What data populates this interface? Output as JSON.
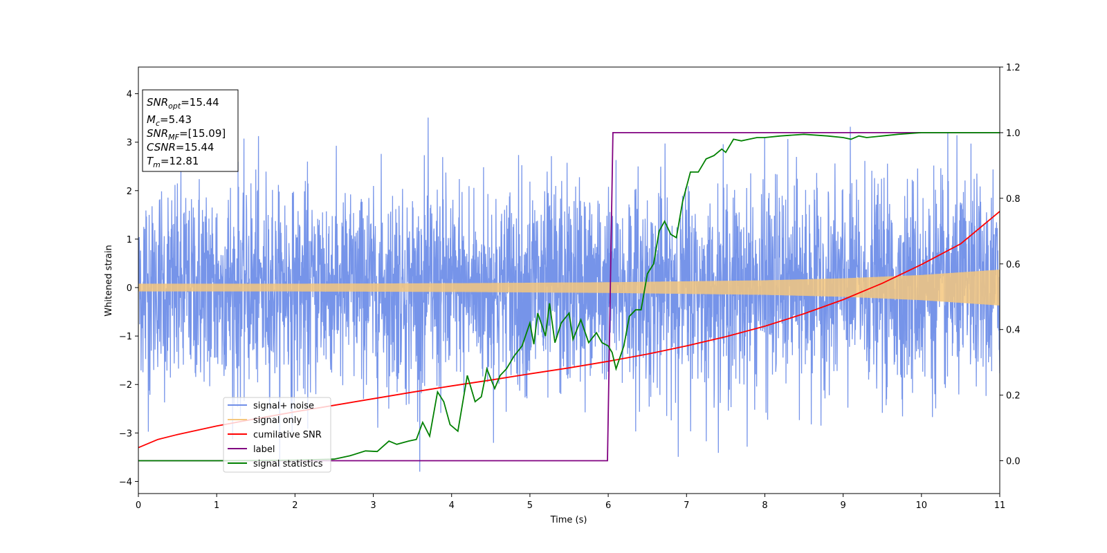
{
  "chart_data": {
    "type": "line",
    "xlabel": "Time (s)",
    "ylabel": "Whitened strain",
    "xlim": [
      0,
      11
    ],
    "ylim": [
      -4.25,
      4.55
    ],
    "y2lim": [
      -0.1,
      1.2
    ],
    "x_ticks": [
      "0",
      "1",
      "2",
      "3",
      "4",
      "5",
      "6",
      "7",
      "8",
      "9",
      "10",
      "11"
    ],
    "y_ticks": [
      "−4",
      "−3",
      "−2",
      "−1",
      "0",
      "1",
      "2",
      "3",
      "4"
    ],
    "y2_ticks": [
      "0.0",
      "0.2",
      "0.4",
      "0.6",
      "0.8",
      "1.0",
      "1.2"
    ],
    "grid": false,
    "legend_position": "lower-left",
    "legend": [
      {
        "label": "signal+ noise",
        "color": "#6f8ee8"
      },
      {
        "label": "signal only",
        "color": "#f5c77e"
      },
      {
        "label": "cumilative SNR",
        "color": "#ff0000"
      },
      {
        "label": "label",
        "color": "#800080"
      },
      {
        "label": "signal statistics",
        "color": "#008000"
      }
    ],
    "stats_box": [
      {
        "name": "SNR",
        "sub": "opt",
        "value": "=15.44"
      },
      {
        "name": "M",
        "sub": "c",
        "value": "=5.43"
      },
      {
        "name": "SNR",
        "sub": "MF",
        "value": "=[15.09]"
      },
      {
        "name": "CSNR",
        "sub": "",
        "value": "=15.44"
      },
      {
        "name": "T",
        "sub": "m",
        "value": "=12.81"
      }
    ],
    "series": [
      {
        "name": "signal+ noise",
        "axis": "left",
        "color": "#6f8ee8",
        "description_only": true,
        "noise_band": {
          "min": -3.8,
          "max": 3.8,
          "typical_abs": 2.2
        }
      },
      {
        "name": "signal only",
        "axis": "left",
        "color": "#f5c77e",
        "envelope": {
          "x": [
            0,
            2,
            4,
            6,
            8,
            9,
            10,
            11
          ],
          "amplitude": [
            0.08,
            0.08,
            0.09,
            0.11,
            0.15,
            0.19,
            0.26,
            0.37
          ]
        }
      },
      {
        "name": "cumilative SNR",
        "axis": "right",
        "color": "#ff0000",
        "x": [
          0,
          0.25,
          0.5,
          1,
          1.5,
          2,
          2.5,
          3,
          3.5,
          4,
          4.5,
          5,
          5.5,
          6,
          6.5,
          7,
          7.5,
          8,
          8.5,
          9,
          9.5,
          10,
          10.5,
          11
        ],
        "values": [
          0.04,
          0.065,
          0.08,
          0.106,
          0.128,
          0.149,
          0.169,
          0.189,
          0.209,
          0.228,
          0.246,
          0.265,
          0.283,
          0.303,
          0.325,
          0.35,
          0.378,
          0.41,
          0.448,
          0.491,
          0.541,
          0.598,
          0.661,
          0.76
        ]
      },
      {
        "name": "label",
        "axis": "right",
        "color": "#800080",
        "x": [
          0,
          5.99,
          6.06,
          11
        ],
        "values": [
          0.0,
          0.0,
          1.0,
          1.0
        ]
      },
      {
        "name": "signal statistics",
        "axis": "right",
        "color": "#008000",
        "x": [
          0,
          0.5,
          1,
          1.5,
          2,
          2.5,
          2.7,
          2.9,
          3.05,
          3.2,
          3.3,
          3.45,
          3.55,
          3.63,
          3.72,
          3.82,
          3.9,
          3.98,
          4.08,
          4.2,
          4.3,
          4.38,
          4.45,
          4.55,
          4.62,
          4.7,
          4.8,
          4.9,
          5.0,
          5.05,
          5.1,
          5.2,
          5.25,
          5.32,
          5.4,
          5.5,
          5.55,
          5.65,
          5.75,
          5.85,
          5.92,
          6.0,
          6.05,
          6.1,
          6.2,
          6.27,
          6.35,
          6.42,
          6.5,
          6.58,
          6.65,
          6.72,
          6.8,
          6.87,
          6.95,
          7.05,
          7.15,
          7.25,
          7.35,
          7.45,
          7.5,
          7.6,
          7.7,
          7.8,
          7.9,
          8.0,
          8.2,
          8.5,
          8.8,
          9.0,
          9.1,
          9.2,
          9.3,
          9.5,
          9.7,
          10.0,
          11
        ],
        "values": [
          0.0,
          0.0,
          0.0,
          0.001,
          0.002,
          0.005,
          0.015,
          0.03,
          0.028,
          0.06,
          0.05,
          0.06,
          0.065,
          0.117,
          0.075,
          0.21,
          0.18,
          0.11,
          0.09,
          0.26,
          0.18,
          0.195,
          0.28,
          0.22,
          0.26,
          0.28,
          0.32,
          0.35,
          0.42,
          0.355,
          0.45,
          0.38,
          0.48,
          0.36,
          0.42,
          0.45,
          0.37,
          0.43,
          0.36,
          0.39,
          0.36,
          0.35,
          0.33,
          0.28,
          0.35,
          0.44,
          0.46,
          0.46,
          0.57,
          0.6,
          0.7,
          0.73,
          0.69,
          0.68,
          0.79,
          0.88,
          0.88,
          0.92,
          0.93,
          0.95,
          0.94,
          0.98,
          0.975,
          0.98,
          0.985,
          0.985,
          0.99,
          0.995,
          0.99,
          0.985,
          0.98,
          0.99,
          0.985,
          0.99,
          0.995,
          1.0,
          1.0
        ]
      }
    ]
  }
}
